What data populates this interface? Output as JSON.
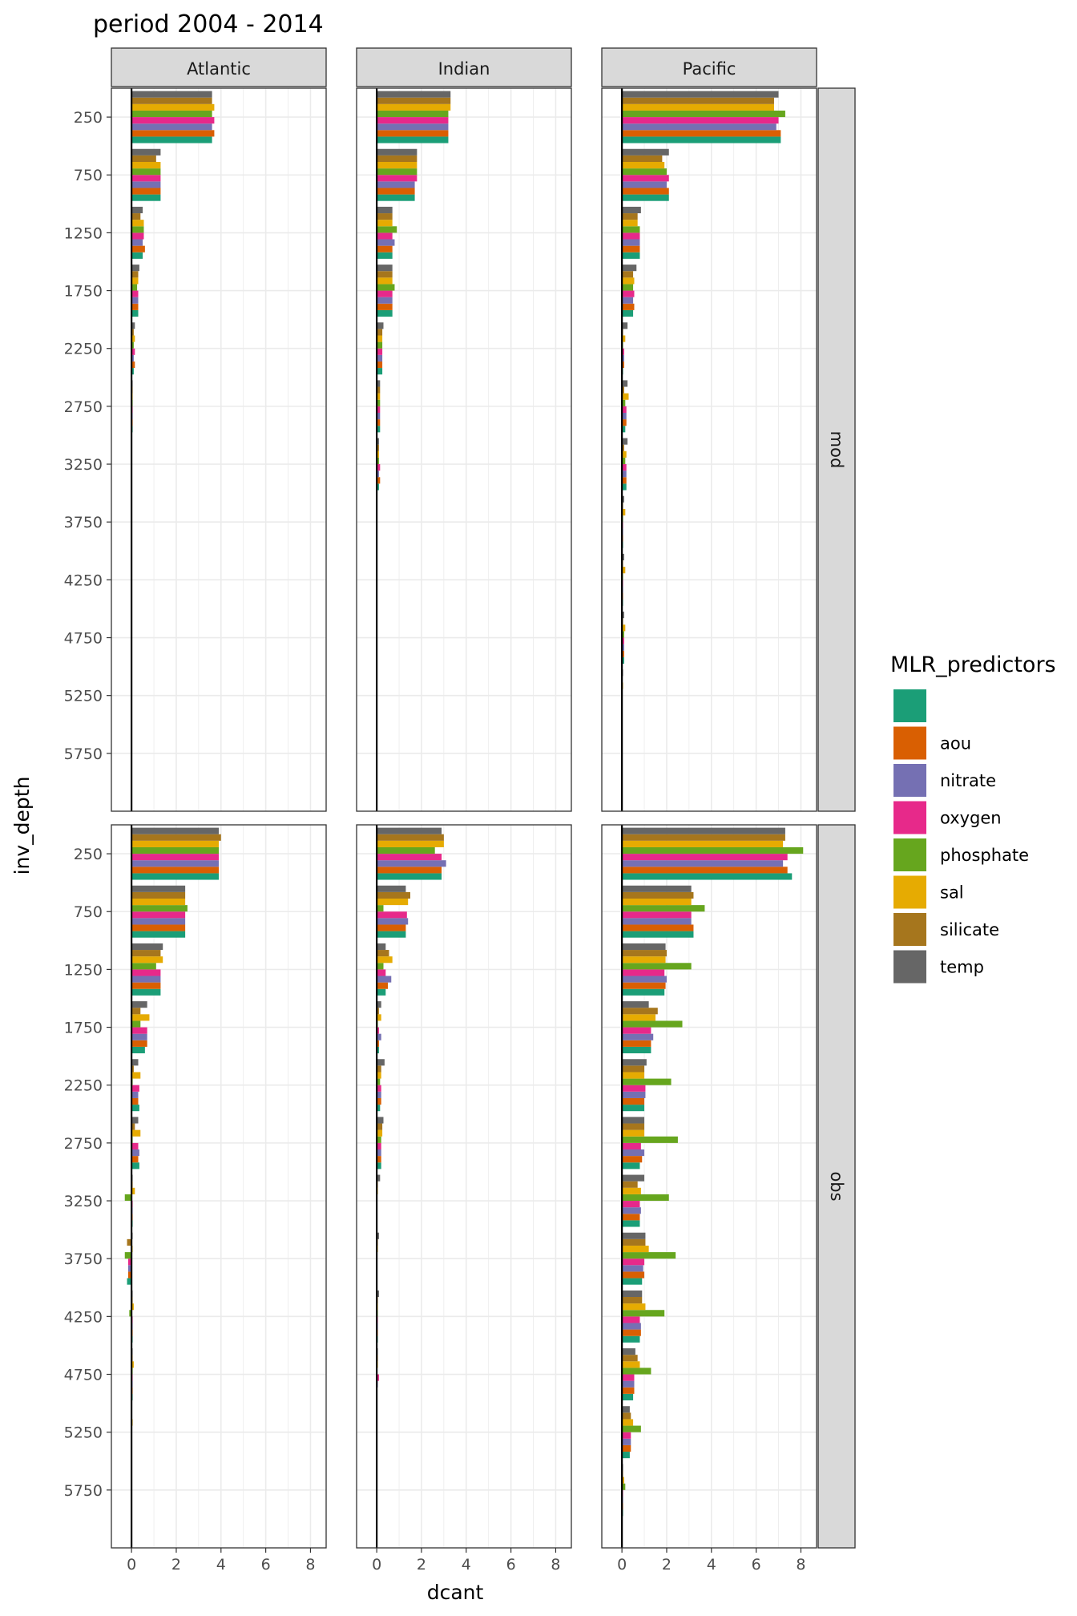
{
  "chart_data": {
    "type": "bar",
    "orientation": "horizontal",
    "title": "period 2004 - 2014",
    "xlabel": "dcant",
    "ylabel": "inv_depth",
    "xlim": [
      -0.9,
      8.7
    ],
    "x_ticks": [
      0,
      2,
      4,
      6,
      8
    ],
    "y_ticks": [
      250,
      750,
      1250,
      1750,
      2250,
      2750,
      3250,
      3750,
      4250,
      4750,
      5250,
      5750
    ],
    "columns": [
      "Atlantic",
      "Indian",
      "Pacific"
    ],
    "rows": [
      "mod",
      "obs"
    ],
    "grid": true,
    "legend_position": "right",
    "legend": {
      "title": "MLR_predictors",
      "entries": [
        {
          "label": "",
          "color": "#1B9E77"
        },
        {
          "label": "aou",
          "color": "#D95F02"
        },
        {
          "label": "nitrate",
          "color": "#7570B3"
        },
        {
          "label": "oxygen",
          "color": "#E7298A"
        },
        {
          "label": "phosphate",
          "color": "#66A61E"
        },
        {
          "label": "sal",
          "color": "#E6AB02"
        },
        {
          "label": "silicate",
          "color": "#A6761D"
        },
        {
          "label": "temp",
          "color": "#666666"
        }
      ]
    },
    "panels": [
      {
        "row": "mod",
        "column": "Atlantic",
        "values": [
          [
            3.6,
            3.7,
            3.6,
            3.7,
            3.6,
            3.7,
            3.6,
            3.6
          ],
          [
            1.3,
            1.3,
            1.3,
            1.3,
            1.3,
            1.3,
            1.1,
            1.3
          ],
          [
            0.5,
            0.6,
            0.5,
            0.55,
            0.55,
            0.55,
            0.4,
            0.5
          ],
          [
            0.3,
            0.3,
            0.3,
            0.3,
            0.25,
            0.3,
            0.3,
            0.35
          ],
          [
            0.1,
            0.15,
            0.1,
            0.15,
            0.1,
            0.15,
            0.1,
            0.15
          ],
          [
            0.05,
            0.05,
            0.05,
            0.05,
            0.05,
            0.05,
            0.05,
            0.05
          ],
          [
            0.03,
            0.03,
            0.03,
            0.03,
            0.03,
            0.03,
            0.03,
            0.03
          ],
          [
            0.03,
            0.03,
            0.03,
            0.03,
            0.03,
            0.03,
            0.03,
            0.03
          ],
          [
            0.02,
            0.02,
            0.02,
            0.02,
            0.02,
            0.02,
            0.02,
            0.02
          ],
          [
            0.02,
            0.02,
            0.02,
            0.02,
            0.02,
            0.02,
            0.02,
            0.02
          ],
          [
            0,
            0,
            0,
            0,
            0,
            0,
            0,
            0
          ],
          [
            0,
            0,
            0,
            0,
            0,
            0,
            0,
            0
          ]
        ]
      },
      {
        "row": "mod",
        "column": "Indian",
        "values": [
          [
            3.2,
            3.2,
            3.2,
            3.2,
            3.2,
            3.3,
            3.3,
            3.3
          ],
          [
            1.7,
            1.7,
            1.7,
            1.8,
            1.8,
            1.8,
            1.8,
            1.8
          ],
          [
            0.7,
            0.7,
            0.8,
            0.7,
            0.9,
            0.7,
            0.7,
            0.7
          ],
          [
            0.7,
            0.7,
            0.7,
            0.7,
            0.8,
            0.7,
            0.7,
            0.7
          ],
          [
            0.25,
            0.25,
            0.25,
            0.25,
            0.25,
            0.25,
            0.25,
            0.3
          ],
          [
            0.15,
            0.15,
            0.15,
            0.15,
            0.15,
            0.15,
            0.15,
            0.15
          ],
          [
            0.1,
            0.15,
            0.1,
            0.15,
            0.1,
            0.1,
            0.1,
            0.1
          ],
          [
            0.03,
            0.03,
            0.03,
            0.03,
            0.03,
            0.03,
            0.03,
            0.03
          ],
          [
            0.03,
            0.03,
            0.03,
            0.03,
            0.03,
            0.03,
            0.03,
            0.03
          ],
          [
            0.03,
            0.03,
            0.03,
            0.03,
            0.03,
            0.03,
            0.03,
            0.03
          ],
          [
            0.02,
            0.02,
            0.02,
            0.02,
            0.02,
            0.02,
            0.02,
            0.02
          ],
          [
            0,
            0,
            0,
            0,
            0,
            0,
            0,
            0
          ]
        ]
      },
      {
        "row": "mod",
        "column": "Pacific",
        "values": [
          [
            7.1,
            7.1,
            6.9,
            7.0,
            7.3,
            6.8,
            6.8,
            7.0
          ],
          [
            2.1,
            2.1,
            2.0,
            2.1,
            2.0,
            1.9,
            1.8,
            2.1
          ],
          [
            0.8,
            0.8,
            0.8,
            0.8,
            0.8,
            0.7,
            0.7,
            0.85
          ],
          [
            0.5,
            0.55,
            0.5,
            0.55,
            0.5,
            0.55,
            0.5,
            0.65
          ],
          [
            0.05,
            0.1,
            0.1,
            0.1,
            0.05,
            0.15,
            0.05,
            0.25
          ],
          [
            0.15,
            0.2,
            0.2,
            0.2,
            0.15,
            0.3,
            0.1,
            0.25
          ],
          [
            0.2,
            0.2,
            0.2,
            0.2,
            0.15,
            0.2,
            0.1,
            0.25
          ],
          [
            0.05,
            0.05,
            0.05,
            0.05,
            0.05,
            0.15,
            0.05,
            0.1
          ],
          [
            0.05,
            0.05,
            0.05,
            0.05,
            0.05,
            0.15,
            0.05,
            0.1
          ],
          [
            0.1,
            0.1,
            0.1,
            0.1,
            0.1,
            0.15,
            0.05,
            0.1
          ],
          [
            0.03,
            0.03,
            0.03,
            0.03,
            0.03,
            0.05,
            0.03,
            0.05
          ],
          [
            0.02,
            0.02,
            0.02,
            0.02,
            0.02,
            0.02,
            0.02,
            0.02
          ]
        ]
      },
      {
        "row": "obs",
        "column": "Atlantic",
        "values": [
          [
            3.9,
            3.9,
            3.9,
            3.9,
            3.9,
            3.9,
            4.0,
            3.9
          ],
          [
            2.4,
            2.4,
            2.4,
            2.4,
            2.5,
            2.4,
            2.4,
            2.4
          ],
          [
            1.3,
            1.3,
            1.3,
            1.3,
            1.1,
            1.4,
            1.3,
            1.4
          ],
          [
            0.6,
            0.7,
            0.7,
            0.7,
            0.4,
            0.8,
            0.4,
            0.7
          ],
          [
            0.35,
            0.3,
            0.3,
            0.35,
            0.05,
            0.4,
            0.1,
            0.3
          ],
          [
            0.35,
            0.3,
            0.35,
            0.3,
            0.05,
            0.4,
            0.15,
            0.3
          ],
          [
            0.05,
            0.05,
            0.05,
            0.05,
            -0.3,
            0.15,
            0.05,
            0.05
          ],
          [
            -0.2,
            -0.15,
            -0.15,
            -0.15,
            -0.3,
            0.05,
            -0.2,
            0.05
          ],
          [
            0.05,
            0.05,
            0.05,
            0.05,
            -0.1,
            0.1,
            0.05,
            0.05
          ],
          [
            0.05,
            0.05,
            0.05,
            0.05,
            0.05,
            0.1,
            0.05,
            0.05
          ],
          [
            0.03,
            0.03,
            0.03,
            0.03,
            0.03,
            0.05,
            0.03,
            0.03
          ],
          [
            0.02,
            0.02,
            0.02,
            0.02,
            0.02,
            0.02,
            0.02,
            0.02
          ]
        ]
      },
      {
        "row": "obs",
        "column": "Indian",
        "values": [
          [
            2.9,
            2.9,
            3.1,
            2.9,
            2.6,
            3.0,
            3.0,
            2.9
          ],
          [
            1.3,
            1.3,
            1.4,
            1.35,
            0.3,
            1.4,
            1.5,
            1.3
          ],
          [
            0.4,
            0.5,
            0.65,
            0.4,
            0.3,
            0.7,
            0.55,
            0.4
          ],
          [
            0.1,
            0.1,
            0.2,
            0.1,
            0.05,
            0.2,
            0.1,
            0.2
          ],
          [
            0.15,
            0.2,
            0.2,
            0.2,
            0.15,
            0.2,
            0.2,
            0.35
          ],
          [
            0.2,
            0.2,
            0.2,
            0.2,
            0.2,
            0.25,
            0.25,
            0.3
          ],
          [
            0.03,
            0.03,
            0.03,
            0.03,
            0.03,
            0.05,
            0.05,
            0.15
          ],
          [
            0.03,
            0.03,
            0.03,
            0.03,
            0.03,
            0.05,
            0.05,
            0.1
          ],
          [
            0.05,
            0.05,
            0.05,
            0.05,
            0.05,
            0.05,
            0.05,
            0.1
          ],
          [
            0.03,
            0.03,
            0.05,
            0.1,
            0.03,
            0.05,
            0.05,
            0.05
          ],
          [
            0.03,
            0.03,
            0.03,
            0.03,
            0.03,
            0.03,
            0.03,
            0.03
          ],
          [
            0.02,
            0.02,
            0.02,
            0.02,
            0.02,
            0.02,
            0.02,
            0.02
          ]
        ]
      },
      {
        "row": "obs",
        "column": "Pacific",
        "values": [
          [
            7.6,
            7.4,
            7.2,
            7.4,
            8.1,
            7.2,
            7.3,
            7.3
          ],
          [
            3.2,
            3.2,
            3.1,
            3.1,
            3.7,
            3.1,
            3.2,
            3.1
          ],
          [
            1.9,
            1.95,
            2.0,
            1.9,
            3.1,
            1.95,
            2.0,
            1.95
          ],
          [
            1.3,
            1.3,
            1.4,
            1.3,
            2.7,
            1.5,
            1.6,
            1.2
          ],
          [
            1.0,
            1.0,
            1.05,
            1.05,
            2.2,
            1.0,
            1.0,
            1.1
          ],
          [
            0.8,
            0.9,
            1.0,
            0.85,
            2.5,
            1.0,
            1.0,
            1.0
          ],
          [
            0.8,
            0.8,
            0.85,
            0.8,
            2.1,
            0.85,
            0.7,
            1.0
          ],
          [
            0.9,
            1.0,
            0.95,
            1.0,
            2.4,
            1.2,
            1.05,
            1.05
          ],
          [
            0.8,
            0.85,
            0.85,
            0.8,
            1.9,
            1.05,
            0.9,
            0.9
          ],
          [
            0.5,
            0.55,
            0.55,
            0.55,
            1.3,
            0.8,
            0.7,
            0.6
          ],
          [
            0.35,
            0.4,
            0.4,
            0.4,
            0.85,
            0.5,
            0.4,
            0.35
          ],
          [
            0.05,
            0.05,
            0.05,
            0.05,
            0.15,
            0.1,
            0.05,
            0.05
          ]
        ]
      }
    ]
  }
}
